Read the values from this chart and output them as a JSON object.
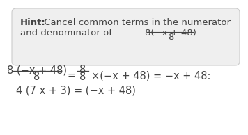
{
  "bg_box_color": "#efefef",
  "border_color": "#cccccc",
  "text_color": "#444444",
  "white": "#ffffff",
  "font_size_hint": 9.5,
  "font_size_main": 10.5,
  "hint_bold": "Hint:",
  "hint_line1": " Cancel common terms in the numerator",
  "hint_line2_pre": "and denominator of ",
  "hint_frac_num": "8(−x + 48)",
  "hint_frac_den": "8",
  "hint_dot": ".",
  "main_frac_num": "8 (−x + 48)",
  "main_frac_den": "8",
  "main_eq1_num": "8",
  "main_eq1_den": "8",
  "main_eq1_rest": "×(−x + 48) = −x + 48:",
  "main_line2": "4 (7 x + 3) = (−x + 48)"
}
